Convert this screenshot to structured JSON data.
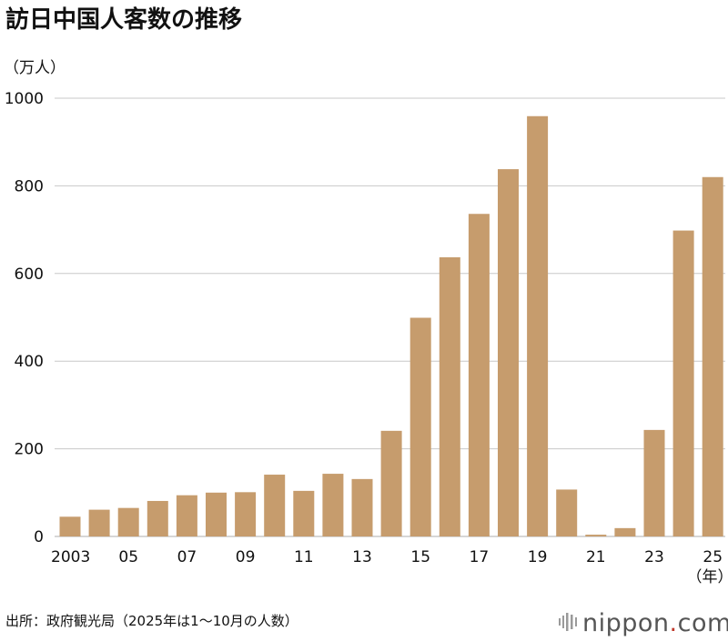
{
  "chart_data": {
    "type": "bar",
    "title": "訪日中国人客数の推移",
    "ylabel": "（万人）",
    "xlabel": "（年）",
    "ylim": [
      0,
      1000
    ],
    "yticks": [
      "0",
      "200",
      "400",
      "600",
      "800",
      "1000"
    ],
    "grid": "horizontal",
    "categories": [
      "2003",
      "2004",
      "2005",
      "2006",
      "2007",
      "2008",
      "2009",
      "2010",
      "2011",
      "2012",
      "2013",
      "2014",
      "2015",
      "2016",
      "2017",
      "2018",
      "2019",
      "2020",
      "2021",
      "2022",
      "2023",
      "2024",
      "2025"
    ],
    "tick_labels": [
      "2003",
      "",
      "05",
      "",
      "07",
      "",
      "09",
      "",
      "11",
      "",
      "13",
      "",
      "15",
      "",
      "17",
      "",
      "19",
      "",
      "21",
      "",
      "23",
      "",
      "25"
    ],
    "values": [
      45,
      61,
      65,
      81,
      94,
      100,
      101,
      141,
      104,
      143,
      131,
      241,
      499,
      637,
      736,
      838,
      959,
      107,
      4,
      19,
      243,
      698,
      820
    ],
    "bar_color": "#c69c6d",
    "grid_color": "#c8c8c8"
  },
  "source": "出所：政府観光局（2025年は1～10月の人数）",
  "logo": {
    "text_main": "nippon",
    "text_dot": ".",
    "text_tail": "com",
    "dot_color": "#c0392b"
  }
}
